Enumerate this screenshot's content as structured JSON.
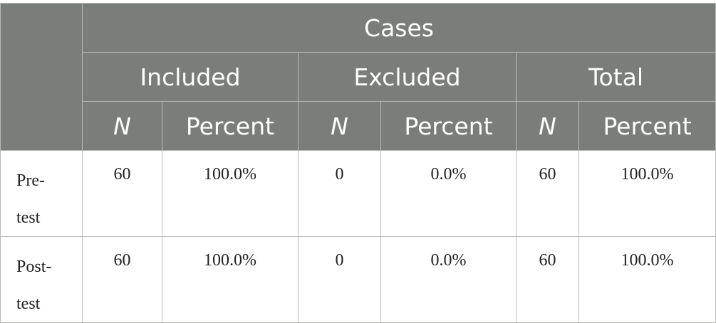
{
  "header": {
    "cases": "Cases",
    "groups": [
      "Included",
      "Excluded",
      "Total"
    ],
    "n_label": "N",
    "percent_label": "Percent"
  },
  "rows": [
    {
      "label_line1": "Pre-",
      "label_line2": "test",
      "included_n": "60",
      "included_pct": "100.0%",
      "excluded_n": "0",
      "excluded_pct": "0.0%",
      "total_n": "60",
      "total_pct": "100.0%"
    },
    {
      "label_line1": "Post-",
      "label_line2": "test",
      "included_n": "60",
      "included_pct": "100.0%",
      "excluded_n": "0",
      "excluded_pct": "0.0%",
      "total_n": "60",
      "total_pct": "100.0%"
    }
  ]
}
